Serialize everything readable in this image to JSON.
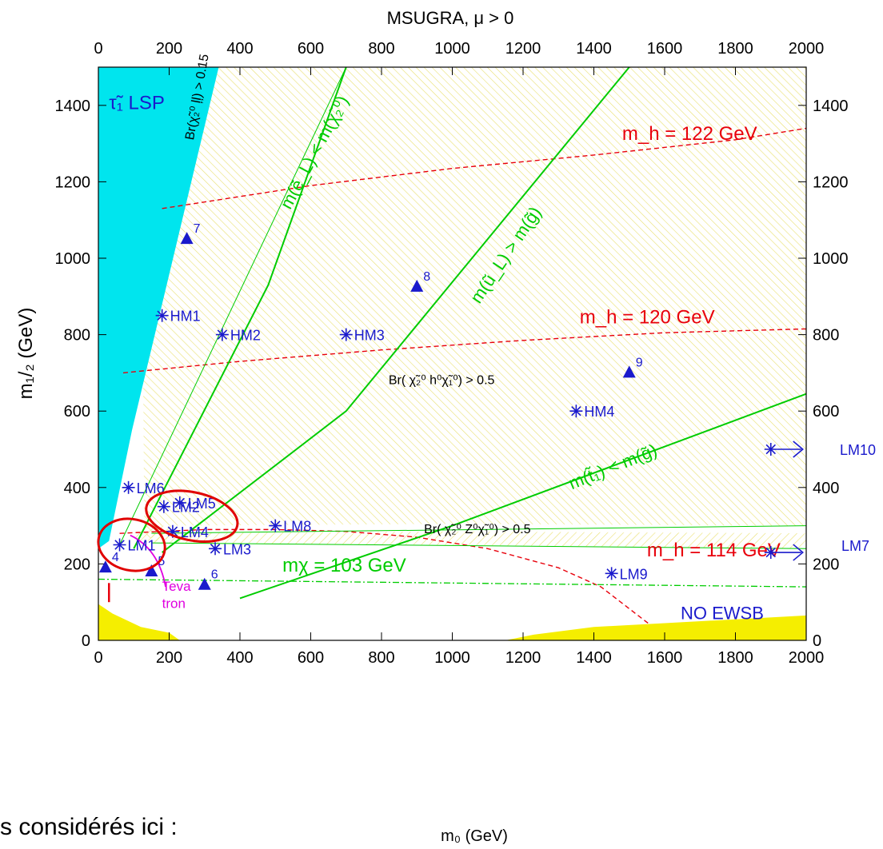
{
  "chart_data": {
    "type": "scatter",
    "title": "MSUGRA, μ > 0",
    "xlabel": "m₀ (GeV)",
    "ylabel": "m₁/₂ (GeV)",
    "xlim": [
      0,
      2000
    ],
    "ylim": [
      0,
      1500
    ],
    "xticks": [
      0,
      200,
      400,
      600,
      800,
      1000,
      1200,
      1400,
      1600,
      1800,
      2000
    ],
    "yticks": [
      0,
      200,
      400,
      600,
      800,
      1000,
      1200,
      1400
    ],
    "grid": false,
    "colors": {
      "stau_lsp": "#00e5ee",
      "no_ewsb": "#f5ee00",
      "hatch": "#e9e070",
      "higgs": "#e8000b",
      "sparticle": "#00cc00",
      "points": "#1a1acc",
      "tevatron": "#e000e0",
      "highlight": "#e00000"
    },
    "regions": [
      {
        "label": "τ̃₁ LSP",
        "color": "#00e5ee",
        "polygon": [
          [
            0,
            240
          ],
          [
            0,
            1500
          ],
          [
            340,
            1500
          ],
          [
            95,
            550
          ],
          [
            30,
            260
          ]
        ]
      },
      {
        "label": "NO EWSB",
        "color": "#f5ee00",
        "polygon": [
          [
            0,
            0
          ],
          [
            0,
            95
          ],
          [
            40,
            70
          ],
          [
            120,
            35
          ],
          [
            200,
            20
          ],
          [
            230,
            0
          ]
        ]
      },
      {
        "label": "NO EWSB",
        "color": "#f5ee00",
        "polygon": [
          [
            1150,
            0
          ],
          [
            1230,
            15
          ],
          [
            1400,
            35
          ],
          [
            1600,
            45
          ],
          [
            1800,
            55
          ],
          [
            2000,
            65
          ],
          [
            2000,
            0
          ]
        ]
      }
    ],
    "curves": [
      {
        "label": "m_h = 122 GeV",
        "style": "higgs",
        "x": [
          180,
          600,
          1000,
          1400,
          1800,
          2000
        ],
        "y": [
          1130,
          1190,
          1235,
          1270,
          1310,
          1340
        ]
      },
      {
        "label": "m_h = 120 GeV",
        "style": "higgs",
        "x": [
          70,
          400,
          800,
          1200,
          1600,
          2000
        ],
        "y": [
          700,
          730,
          760,
          785,
          805,
          815
        ]
      },
      {
        "label": "m_h = 114 GeV",
        "style": "higgs",
        "x": [
          60,
          300,
          500,
          700,
          900,
          1100,
          1300,
          1420,
          1560
        ],
        "y": [
          280,
          290,
          290,
          285,
          270,
          240,
          190,
          140,
          40
        ]
      },
      {
        "label": "m(ẽ_L) < m(χ̃₂⁰)",
        "style": "sparticle",
        "x": [
          100,
          480,
          700
        ],
        "y": [
          240,
          930,
          1500
        ]
      },
      {
        "label": "m(ũ_L) > m(g̃)",
        "style": "sparticle",
        "x": [
          180,
          700,
          1500
        ],
        "y": [
          230,
          600,
          1500
        ]
      },
      {
        "label": "m(t̃₁) < m(g̃)",
        "style": "sparticle",
        "x": [
          400,
          1000,
          2000
        ],
        "y": [
          110,
          300,
          645
        ]
      },
      {
        "label": "m_χ = 103 GeV",
        "style": "chargino",
        "x": [
          0,
          1000,
          2000
        ],
        "y": [
          160,
          150,
          140
        ]
      }
    ],
    "annotations": [
      {
        "text": "τ̃₁ LSP",
        "x": 30,
        "y": 1390
      },
      {
        "text": "Br(χ̃₂⁰ ļļ) > 0.15",
        "x": 290,
        "y": 1420
      },
      {
        "text": "m(ẽ_L) < m(χ̃₂⁰)",
        "x": 625,
        "y": 1270
      },
      {
        "text": "m(ũ_L) > m(g̃)",
        "x": 1165,
        "y": 1000
      },
      {
        "text": "m_h = 122 GeV",
        "x": 1480,
        "y": 1310
      },
      {
        "text": "m_h = 120 GeV",
        "x": 1360,
        "y": 830
      },
      {
        "text": "Br( χ̃₂⁰ h⁰χ̃₁⁰) > 0.5",
        "x": 820,
        "y": 670
      },
      {
        "text": "m(t̃₁) < m(g̃)",
        "x": 1460,
        "y": 440
      },
      {
        "text": "Br( χ̃₂⁰ Z⁰χ̃₁⁰) > 0.5",
        "x": 920,
        "y": 280
      },
      {
        "text": "m_h = 114 GeV",
        "x": 1550,
        "y": 220
      },
      {
        "text": "mχ = 103 GeV",
        "x": 520,
        "y": 180
      },
      {
        "text": "NO EWSB",
        "x": 1880,
        "y": 55
      },
      {
        "text": "Teva",
        "x": 180,
        "y": 130
      },
      {
        "text": "tron",
        "x": 180,
        "y": 85
      }
    ],
    "benchmarks_star": [
      {
        "label": "LM1",
        "x": 60,
        "y": 250
      },
      {
        "label": "LM2",
        "x": 185,
        "y": 350
      },
      {
        "label": "LM3",
        "x": 330,
        "y": 240
      },
      {
        "label": "LM4",
        "x": 210,
        "y": 285
      },
      {
        "label": "LM5",
        "x": 230,
        "y": 360
      },
      {
        "label": "LM6",
        "x": 85,
        "y": 400
      },
      {
        "label": "LM7",
        "x": 1900,
        "y": 230
      },
      {
        "label": "LM8",
        "x": 500,
        "y": 300
      },
      {
        "label": "LM9",
        "x": 1450,
        "y": 175
      },
      {
        "label": "LM10",
        "x": 1900,
        "y": 500
      },
      {
        "label": "HM1",
        "x": 180,
        "y": 850
      },
      {
        "label": "HM2",
        "x": 350,
        "y": 800
      },
      {
        "label": "HM3",
        "x": 700,
        "y": 800
      },
      {
        "label": "HM4",
        "x": 1350,
        "y": 600
      }
    ],
    "benchmarks_triangle": [
      {
        "label": "4",
        "x": 20,
        "y": 190
      },
      {
        "label": "5",
        "x": 150,
        "y": 180
      },
      {
        "label": "6",
        "x": 300,
        "y": 145
      },
      {
        "label": "7",
        "x": 250,
        "y": 1050
      },
      {
        "label": "8",
        "x": 900,
        "y": 925
      },
      {
        "label": "9",
        "x": 1500,
        "y": 700
      }
    ],
    "highlighted": [
      "LM1",
      "LM2"
    ]
  },
  "caption": "s considérés ici :"
}
